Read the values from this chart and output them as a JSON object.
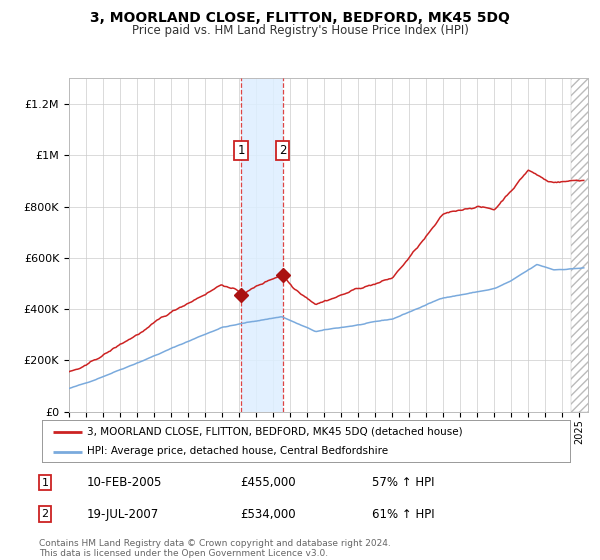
{
  "title": "3, MOORLAND CLOSE, FLITTON, BEDFORD, MK45 5DQ",
  "subtitle": "Price paid vs. HM Land Registry's House Price Index (HPI)",
  "ylim": [
    0,
    1300000
  ],
  "xlim_start": 1995.0,
  "xlim_end": 2025.5,
  "yticks": [
    0,
    200000,
    400000,
    600000,
    800000,
    1000000,
    1200000
  ],
  "ytick_labels": [
    "£0",
    "£200K",
    "£400K",
    "£600K",
    "£800K",
    "£1M",
    "£1.2M"
  ],
  "sale1_date": 2005.11,
  "sale1_price": 455000,
  "sale1_label": "1",
  "sale2_date": 2007.55,
  "sale2_price": 534000,
  "sale2_label": "2",
  "line_color_hpi": "#7aaadd",
  "line_color_price": "#cc2222",
  "marker_color": "#aa1111",
  "shade_color": "#ddeeff",
  "dashed_line_color": "#dd4444",
  "grid_color": "#cccccc",
  "background_color": "#ffffff",
  "hatch_region_start": 2024.5,
  "footnote": "Contains HM Land Registry data © Crown copyright and database right 2024.\nThis data is licensed under the Open Government Licence v3.0.",
  "legend1": "3, MOORLAND CLOSE, FLITTON, BEDFORD, MK45 5DQ (detached house)",
  "legend2": "HPI: Average price, detached house, Central Bedfordshire",
  "table_row1": [
    "1",
    "10-FEB-2005",
    "£455,000",
    "57% ↑ HPI"
  ],
  "table_row2": [
    "2",
    "19-JUL-2007",
    "£534,000",
    "61% ↑ HPI"
  ]
}
